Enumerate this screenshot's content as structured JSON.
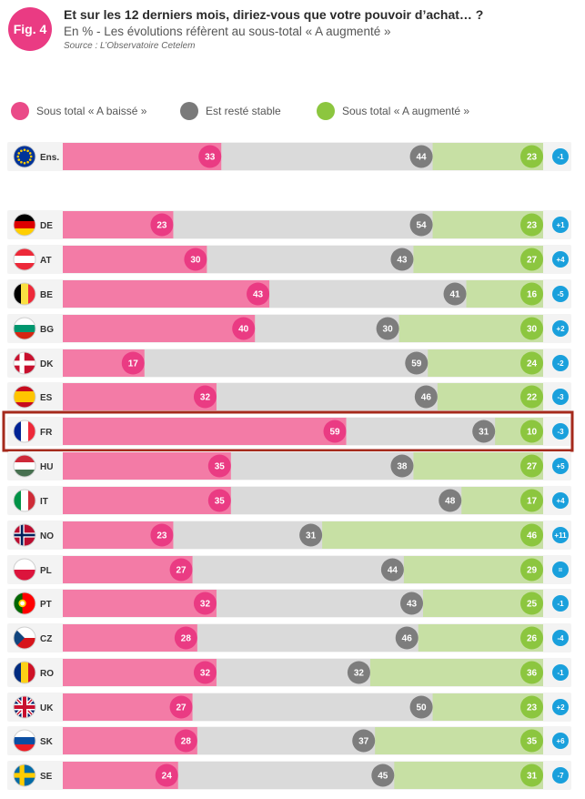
{
  "figure": {
    "badge": "Fig. 4",
    "title": "Et sur les 12 derniers mois, diriez-vous que votre pouvoir d’achat… ?",
    "subtitle": "En % - Les évolutions réfèrent au sous-total « A augmenté »",
    "source": "Source : L’Observatoire Cetelem"
  },
  "legend": [
    {
      "label": "Sous total « A baissé »",
      "color": "#ea4a88"
    },
    {
      "label": "Est resté stable",
      "color": "#7a7a7a"
    },
    {
      "label": "Sous total « A augmenté »",
      "color": "#8cc63f"
    }
  ],
  "colors": {
    "decreased_bar": "#f37ba6",
    "decreased_dot": "#ea3b83",
    "stable_bar": "#dadada",
    "stable_dot": "#7d7d7d",
    "increased_bar": "#c7e0a4",
    "increased_dot": "#8cc63f",
    "evolution": "#1aa0dc",
    "highlight": "#a52a1c"
  },
  "chart_data": {
    "type": "bar",
    "stacked": true,
    "orientation": "horizontal",
    "title": "Et sur les 12 derniers mois, diriez-vous que votre pouvoir d’achat… ?",
    "unit": "%",
    "highlight": "FR",
    "categories": [
      "Ens.",
      "DE",
      "AT",
      "BE",
      "BG",
      "DK",
      "ES",
      "FR",
      "HU",
      "IT",
      "NO",
      "PL",
      "PT",
      "CZ",
      "RO",
      "UK",
      "SK",
      "SE"
    ],
    "series": [
      {
        "name": "Sous total « A baissé »",
        "values": [
          33,
          23,
          30,
          43,
          40,
          17,
          32,
          59,
          35,
          35,
          23,
          27,
          32,
          28,
          32,
          27,
          28,
          24
        ]
      },
      {
        "name": "Est resté stable",
        "values": [
          44,
          54,
          43,
          41,
          30,
          59,
          46,
          31,
          38,
          48,
          31,
          44,
          43,
          46,
          32,
          50,
          37,
          45
        ]
      },
      {
        "name": "Sous total « A augmenté »",
        "values": [
          23,
          23,
          27,
          16,
          30,
          24,
          22,
          10,
          27,
          17,
          46,
          29,
          25,
          26,
          36,
          23,
          35,
          31
        ]
      }
    ],
    "evolution": [
      "-1",
      "+1",
      "+4",
      "-5",
      "+2",
      "-2",
      "-3",
      "-3",
      "+5",
      "+4",
      "+11",
      "=",
      "-1",
      "-4",
      "-1",
      "+2",
      "+6",
      "-7"
    ]
  }
}
